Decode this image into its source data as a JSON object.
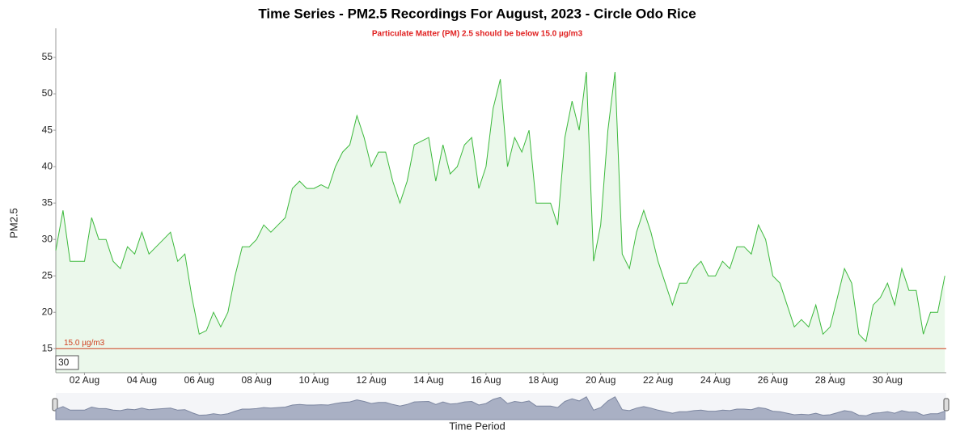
{
  "chart_data": {
    "type": "line",
    "title": "Time Series - PM2.5 Recordings For August, 2023 - Circle Odo Rice",
    "subtitle": "Particulate Matter (PM) 2.5 should be below 15.0 µg/m3",
    "y_label": "PM2.5",
    "x_label": "Time Period",
    "threshold": {
      "value": 15,
      "label": "15.0 µg/m3",
      "color": "#d04020"
    },
    "rolling_period": 30,
    "x": [
      1,
      1.25,
      1.5,
      1.75,
      2,
      2.25,
      2.5,
      2.75,
      3,
      3.25,
      3.5,
      3.75,
      4,
      4.25,
      4.5,
      4.75,
      5,
      5.25,
      5.5,
      5.75,
      6,
      6.25,
      6.5,
      6.75,
      7,
      7.25,
      7.5,
      7.75,
      8,
      8.25,
      8.5,
      8.75,
      9,
      9.25,
      9.5,
      9.75,
      10,
      10.25,
      10.5,
      10.75,
      11,
      11.25,
      11.5,
      11.75,
      12,
      12.25,
      12.5,
      12.75,
      13,
      13.25,
      13.5,
      13.75,
      14,
      14.25,
      14.5,
      14.75,
      15,
      15.25,
      15.5,
      15.75,
      16,
      16.25,
      16.5,
      16.75,
      17,
      17.25,
      17.5,
      17.75,
      18,
      18.25,
      18.5,
      18.75,
      19,
      19.25,
      19.5,
      19.75,
      20,
      20.25,
      20.5,
      20.75,
      21,
      21.25,
      21.5,
      21.75,
      22,
      22.25,
      22.5,
      22.75,
      23,
      23.25,
      23.5,
      23.75,
      24,
      24.25,
      24.5,
      24.75,
      25,
      25.25,
      25.5,
      25.75,
      26,
      26.25,
      26.5,
      26.75,
      27,
      27.25,
      27.5,
      27.75,
      28,
      28.25,
      28.5,
      28.75,
      29,
      29.25,
      29.5,
      29.75,
      30,
      30.25,
      30.5,
      30.75,
      31,
      31.25,
      31.5,
      31.75,
      32
    ],
    "series": [
      {
        "name": "PM2.5",
        "color": "#3cb93c",
        "values": [
          28.5,
          34,
          27,
          27,
          27,
          33,
          30,
          30,
          27,
          26,
          29,
          28,
          31,
          28,
          29,
          30,
          31,
          27,
          28,
          22,
          17,
          17.5,
          20,
          18,
          20,
          25,
          29,
          29,
          30,
          32,
          31,
          32,
          33,
          37,
          38,
          37,
          37,
          37.5,
          37,
          40,
          42,
          43,
          47,
          44,
          40,
          42,
          42,
          38,
          35,
          38,
          43,
          43.5,
          44,
          38,
          43,
          39,
          40,
          43,
          44,
          37,
          40,
          48,
          52,
          40,
          44,
          42,
          45,
          35,
          35,
          35,
          32,
          44,
          49,
          45,
          53,
          27,
          32,
          45,
          53,
          28,
          26,
          31,
          34,
          31,
          27,
          24,
          21,
          24,
          24,
          26,
          27,
          25,
          25,
          27,
          26,
          29,
          29,
          28,
          32,
          30,
          25,
          24,
          21,
          18,
          19,
          18,
          21,
          17,
          18,
          22,
          26,
          24,
          17,
          16,
          21,
          22,
          24,
          21,
          26,
          23,
          23,
          17,
          20,
          20,
          25
        ]
      }
    ],
    "xlim": [
      1,
      32.05
    ],
    "ylim": [
      11.7,
      59
    ],
    "xticks": [
      {
        "value": 2,
        "label": "02 Aug"
      },
      {
        "value": 4,
        "label": "04 Aug"
      },
      {
        "value": 6,
        "label": "06 Aug"
      },
      {
        "value": 8,
        "label": "08 Aug"
      },
      {
        "value": 10,
        "label": "10 Aug"
      },
      {
        "value": 12,
        "label": "12 Aug"
      },
      {
        "value": 14,
        "label": "14 Aug"
      },
      {
        "value": 16,
        "label": "16 Aug"
      },
      {
        "value": 18,
        "label": "18 Aug"
      },
      {
        "value": 20,
        "label": "20 Aug"
      },
      {
        "value": 22,
        "label": "22 Aug"
      },
      {
        "value": 24,
        "label": "24 Aug"
      },
      {
        "value": 26,
        "label": "26 Aug"
      },
      {
        "value": 28,
        "label": "28 Aug"
      },
      {
        "value": 30,
        "label": "30 Aug"
      }
    ],
    "yticks": [
      15,
      20,
      25,
      30,
      35,
      40,
      45,
      50,
      55
    ]
  }
}
